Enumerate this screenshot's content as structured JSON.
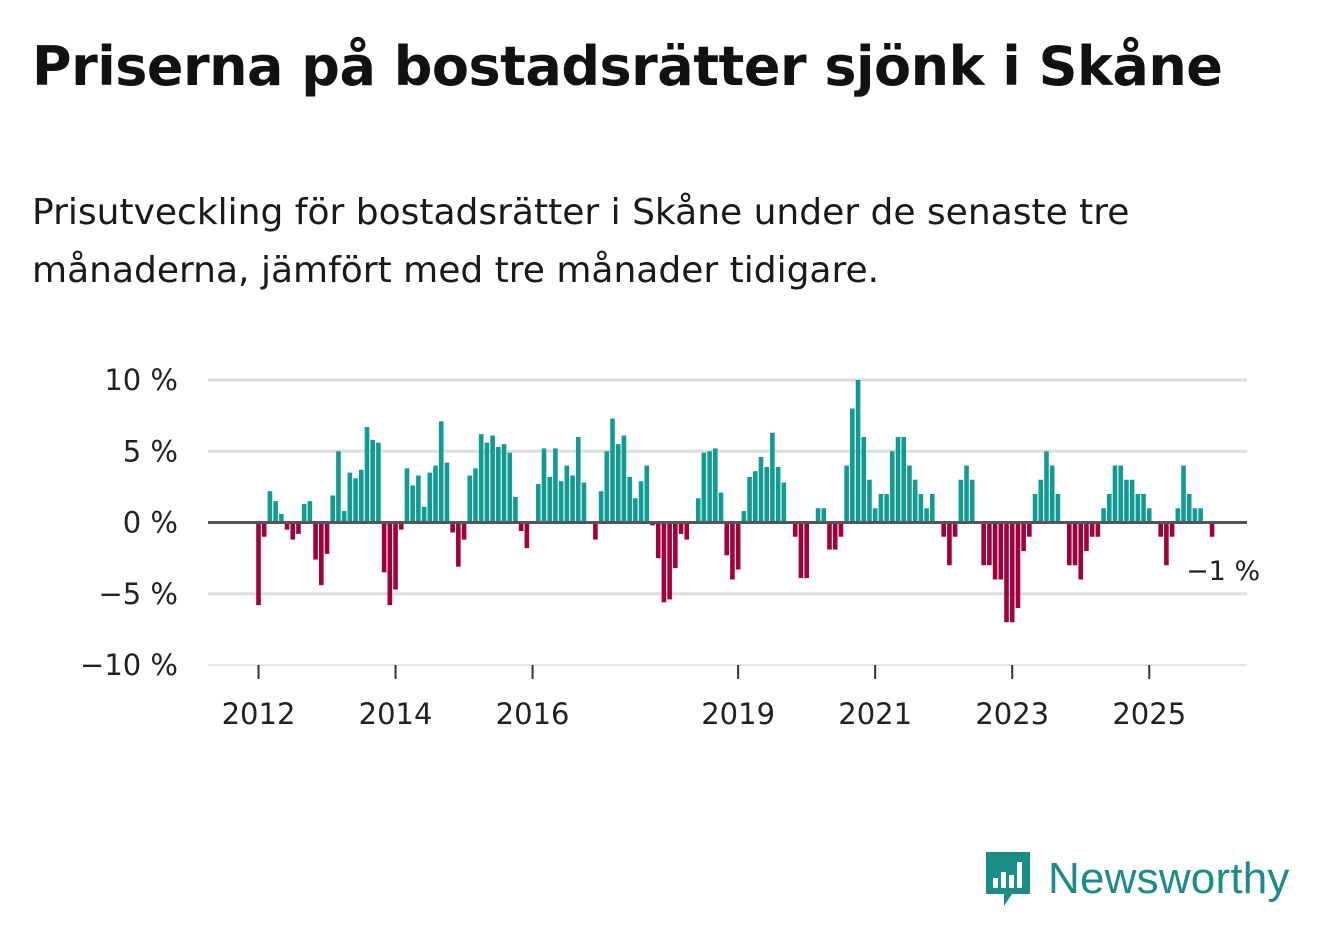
{
  "title": "Priserna på bostadsrätter sjönk i Skåne",
  "subtitle": "Prisutveckling för bostadsrätter i Skåne under de senaste tre månaderna, jämfört med tre månader tidigare.",
  "brand": {
    "name": "Newsworthy",
    "icon": "newsworthy-logo-icon"
  },
  "colors": {
    "positive": "#119c93",
    "negative": "#a0003c",
    "grid": "#dedede",
    "zero": "#555555"
  },
  "chart_data": {
    "type": "bar",
    "title": "Priserna på bostadsrätter sjönk i Skåne",
    "xlabel": "",
    "ylabel": "",
    "unit": "%",
    "ylim": [
      -10,
      10
    ],
    "yticks": [
      10,
      5,
      0,
      -5,
      -10
    ],
    "ytick_labels": [
      "10 %",
      "5 %",
      "0 %",
      "−5 %",
      "−10 %"
    ],
    "x_start": {
      "year": 2012,
      "month": 1
    },
    "xticks": [
      {
        "index": 0,
        "label": "2012"
      },
      {
        "index": 24,
        "label": "2014"
      },
      {
        "index": 48,
        "label": "2016"
      },
      {
        "index": 84,
        "label": "2019"
      },
      {
        "index": 108,
        "label": "2021"
      },
      {
        "index": 132,
        "label": "2023"
      },
      {
        "index": 156,
        "label": "2025"
      }
    ],
    "last_value_label": "−1 %",
    "values": [
      -5.8,
      -1.0,
      2.2,
      1.5,
      0.6,
      -0.5,
      -1.2,
      -0.8,
      1.3,
      1.5,
      -2.6,
      -4.4,
      -2.2,
      1.9,
      5.0,
      0.8,
      3.5,
      3.1,
      3.7,
      6.7,
      5.8,
      5.6,
      -3.5,
      -5.8,
      -4.7,
      -0.5,
      3.8,
      2.6,
      3.3,
      1.1,
      3.5,
      4.0,
      7.1,
      4.2,
      -0.7,
      -3.1,
      -1.2,
      3.3,
      3.8,
      6.2,
      5.6,
      6.1,
      5.3,
      5.5,
      4.9,
      1.8,
      -0.6,
      -1.8,
      0.0,
      2.7,
      5.2,
      3.2,
      5.2,
      2.9,
      4.0,
      3.3,
      6.0,
      2.8,
      0.0,
      -1.2,
      2.2,
      5.0,
      7.3,
      5.5,
      6.1,
      3.2,
      1.7,
      2.9,
      4.0,
      -0.2,
      -2.5,
      -5.6,
      -5.4,
      -3.2,
      -0.8,
      -1.2,
      0.0,
      1.7,
      4.9,
      5.0,
      5.2,
      2.1,
      -2.3,
      -4.0,
      -3.3,
      0.8,
      3.2,
      3.6,
      4.6,
      3.9,
      6.3,
      3.9,
      2.8,
      0.0,
      -1.0,
      -3.9,
      -3.9,
      0.0,
      1.0,
      1.0,
      -1.9,
      -1.9,
      -1.0,
      4.0,
      8.0,
      10.0,
      6.0,
      3.0,
      1.0,
      2.0,
      2.0,
      5.0,
      6.0,
      6.0,
      4.0,
      3.0,
      2.0,
      1.0,
      2.0,
      0.0,
      -1.0,
      -3.0,
      -1.0,
      3.0,
      4.0,
      3.0,
      0.0,
      -3.0,
      -3.0,
      -4.0,
      -4.0,
      -7.0,
      -7.0,
      -6.0,
      -2.0,
      -1.0,
      2.0,
      3.0,
      5.0,
      4.0,
      2.0,
      0.0,
      -3.0,
      -3.0,
      -4.0,
      -2.0,
      -1.0,
      -1.0,
      1.0,
      2.0,
      4.0,
      4.0,
      3.0,
      3.0,
      2.0,
      2.0,
      1.0,
      0.0,
      -1.0,
      -3.0,
      -1.0,
      1.0,
      4.0,
      2.0,
      1.0,
      1.0,
      0.0,
      -1.0
    ]
  }
}
